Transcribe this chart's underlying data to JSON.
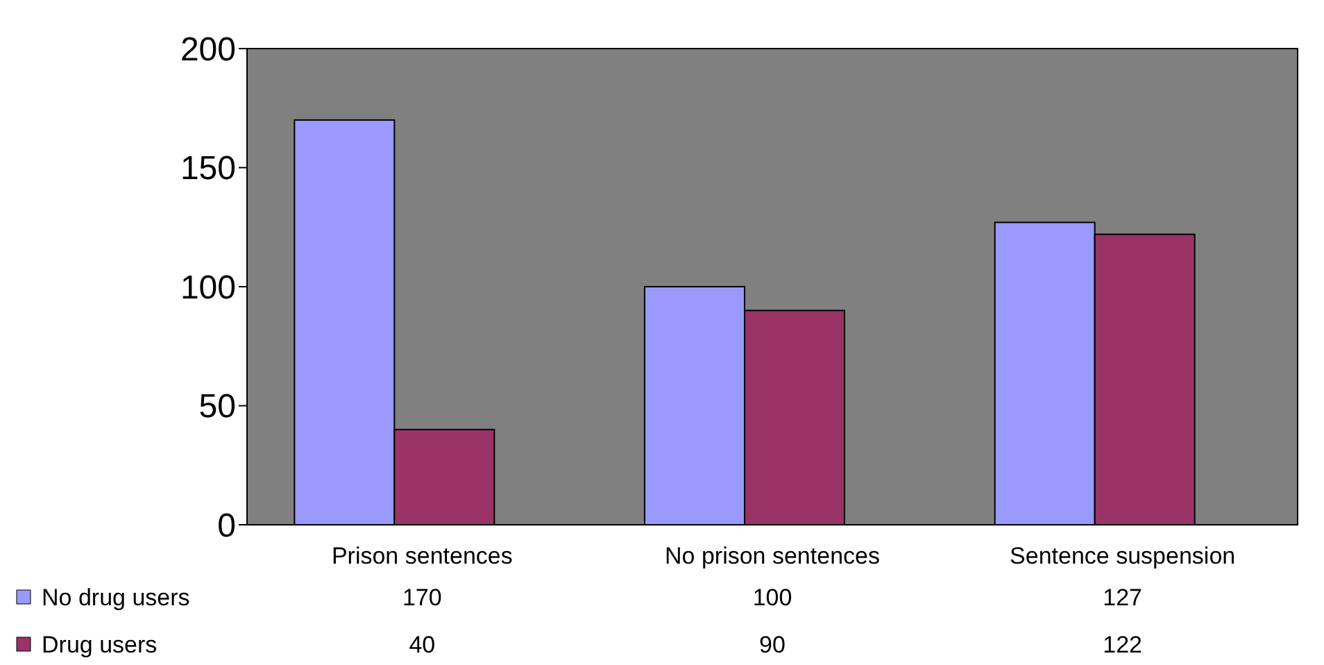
{
  "chart_data": {
    "type": "bar",
    "categories": [
      "Prison sentences",
      "No prison sentences",
      "Sentence suspension"
    ],
    "series": [
      {
        "name": "No drug users",
        "color": "#9999ff",
        "values": [
          170,
          100,
          127
        ]
      },
      {
        "name": "Drug users",
        "color": "#993366",
        "values": [
          40,
          90,
          122
        ]
      }
    ],
    "ylim": [
      0,
      200
    ],
    "yticks": [
      0,
      50,
      100,
      150,
      200
    ],
    "grid": false,
    "legend": "bottom",
    "data_labels": true
  }
}
